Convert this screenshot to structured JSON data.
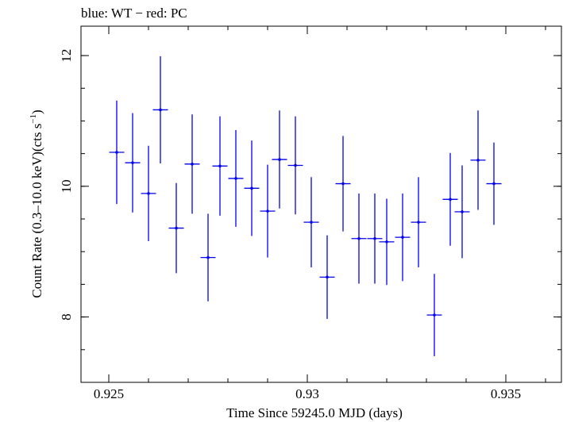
{
  "chart_data": {
    "type": "scatter",
    "title": "blue: WT − red: PC",
    "xlabel": "Time Since 59245.0 MJD (days)",
    "ylabel_main": "Count Rate (0.3–10.0 keV)(cts s",
    "ylabel_sup": "−1",
    "ylabel_close": ")",
    "xlim": [
      0.9243,
      0.9364
    ],
    "ylim": [
      7.0,
      12.45
    ],
    "xticks": [
      {
        "value": 0.925,
        "label": "0.925"
      },
      {
        "value": 0.93,
        "label": "0.93"
      },
      {
        "value": 0.935,
        "label": "0.935"
      }
    ],
    "yticks": [
      {
        "value": 8,
        "label": "8"
      },
      {
        "value": 10,
        "label": "10"
      },
      {
        "value": 12,
        "label": "12"
      }
    ],
    "series": [
      {
        "color": "#0000ee",
        "points": [
          {
            "x": 0.9252,
            "y": 10.52,
            "xerr": 0.00019,
            "yerr": 0.79
          },
          {
            "x": 0.9256,
            "y": 10.36,
            "xerr": 0.00019,
            "yerr": 0.76
          },
          {
            "x": 0.926,
            "y": 9.89,
            "xerr": 0.00019,
            "yerr": 0.73
          },
          {
            "x": 0.9263,
            "y": 11.17,
            "xerr": 0.00019,
            "yerr": 0.82
          },
          {
            "x": 0.9267,
            "y": 9.36,
            "xerr": 0.00019,
            "yerr": 0.69
          },
          {
            "x": 0.9271,
            "y": 10.34,
            "xerr": 0.00019,
            "yerr": 0.76
          },
          {
            "x": 0.9275,
            "y": 8.91,
            "xerr": 0.00019,
            "yerr": 0.67
          },
          {
            "x": 0.9278,
            "y": 10.31,
            "xerr": 0.00019,
            "yerr": 0.76
          },
          {
            "x": 0.9282,
            "y": 10.12,
            "xerr": 0.00019,
            "yerr": 0.74
          },
          {
            "x": 0.9286,
            "y": 9.97,
            "xerr": 0.00019,
            "yerr": 0.73
          },
          {
            "x": 0.929,
            "y": 9.62,
            "xerr": 0.00019,
            "yerr": 0.71
          },
          {
            "x": 0.9293,
            "y": 10.41,
            "xerr": 0.00019,
            "yerr": 0.75
          },
          {
            "x": 0.9297,
            "y": 10.32,
            "xerr": 0.00019,
            "yerr": 0.75
          },
          {
            "x": 0.9301,
            "y": 9.45,
            "xerr": 0.00019,
            "yerr": 0.69
          },
          {
            "x": 0.9305,
            "y": 8.61,
            "xerr": 0.00019,
            "yerr": 0.64
          },
          {
            "x": 0.9309,
            "y": 10.04,
            "xerr": 0.00019,
            "yerr": 0.73
          },
          {
            "x": 0.9313,
            "y": 9.2,
            "xerr": 0.00019,
            "yerr": 0.69
          },
          {
            "x": 0.9317,
            "y": 9.2,
            "xerr": 0.00019,
            "yerr": 0.69
          },
          {
            "x": 0.932,
            "y": 9.15,
            "xerr": 0.00019,
            "yerr": 0.66
          },
          {
            "x": 0.9324,
            "y": 9.22,
            "xerr": 0.00019,
            "yerr": 0.67
          },
          {
            "x": 0.9328,
            "y": 9.45,
            "xerr": 0.00019,
            "yerr": 0.69
          },
          {
            "x": 0.9332,
            "y": 8.03,
            "xerr": 0.00019,
            "yerr": 0.63
          },
          {
            "x": 0.9336,
            "y": 9.8,
            "xerr": 0.00019,
            "yerr": 0.71
          },
          {
            "x": 0.9339,
            "y": 9.61,
            "xerr": 0.00019,
            "yerr": 0.71
          },
          {
            "x": 0.9343,
            "y": 10.4,
            "xerr": 0.00019,
            "yerr": 0.76
          },
          {
            "x": 0.9347,
            "y": 10.04,
            "xerr": 0.00019,
            "yerr": 0.63
          }
        ]
      }
    ]
  }
}
